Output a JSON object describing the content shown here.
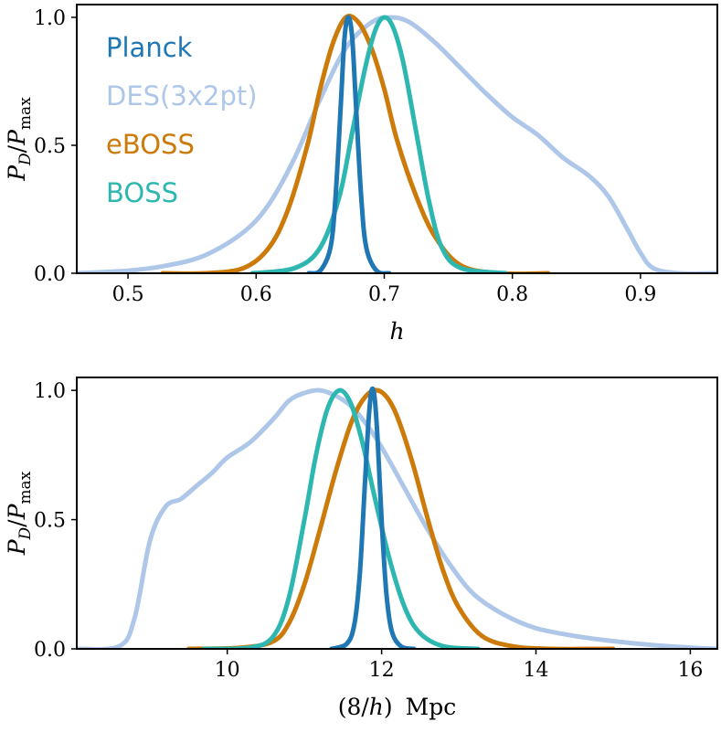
{
  "chart_data": [
    {
      "type": "line",
      "title": "",
      "xlabel": "h",
      "ylabel": "P_D/P_max",
      "xlim": [
        0.46,
        0.96
      ],
      "ylim": [
        0.0,
        1.05
      ],
      "xticks": [
        0.5,
        0.6,
        0.7,
        0.8,
        0.9
      ],
      "xtick_labels": [
        "0.5",
        "0.6",
        "0.7",
        "0.8",
        "0.9"
      ],
      "yticks": [
        0.0,
        0.5,
        1.0
      ],
      "ytick_labels": [
        "0.0",
        "0.5",
        "1.0"
      ],
      "grid": false,
      "legend": "top-left",
      "series": [
        {
          "name": "DES(3x2pt)",
          "color": "#aec7e8",
          "x": [
            0.46,
            0.5,
            0.53,
            0.56,
            0.59,
            0.61,
            0.63,
            0.65,
            0.67,
            0.69,
            0.705,
            0.72,
            0.74,
            0.76,
            0.78,
            0.8,
            0.82,
            0.84,
            0.86,
            0.875,
            0.89,
            0.9,
            0.91,
            0.93,
            0.96
          ],
          "y": [
            0.0,
            0.01,
            0.03,
            0.07,
            0.16,
            0.27,
            0.45,
            0.68,
            0.88,
            0.98,
            1.0,
            0.98,
            0.9,
            0.8,
            0.7,
            0.61,
            0.54,
            0.45,
            0.38,
            0.3,
            0.17,
            0.08,
            0.02,
            0.0,
            0.0
          ]
        },
        {
          "name": "Planck",
          "color": "#1f77b4",
          "x": [
            0.641,
            0.65,
            0.658,
            0.662,
            0.666,
            0.669,
            0.672,
            0.675,
            0.678,
            0.682,
            0.686,
            0.694,
            0.704
          ],
          "y": [
            0.0,
            0.01,
            0.1,
            0.3,
            0.65,
            0.92,
            1.0,
            0.92,
            0.65,
            0.3,
            0.1,
            0.01,
            0.0
          ]
        },
        {
          "name": "eBOSS",
          "color": "#cc7a0a",
          "x": [
            0.527,
            0.56,
            0.59,
            0.61,
            0.625,
            0.64,
            0.65,
            0.66,
            0.67,
            0.68,
            0.69,
            0.7,
            0.71,
            0.725,
            0.74,
            0.76,
            0.79,
            0.828
          ],
          "y": [
            0.0,
            0.0,
            0.02,
            0.1,
            0.25,
            0.5,
            0.72,
            0.9,
            1.0,
            0.98,
            0.88,
            0.72,
            0.52,
            0.3,
            0.14,
            0.03,
            0.0,
            0.0
          ]
        },
        {
          "name": "BOSS",
          "color": "#2eb7b0",
          "x": [
            0.597,
            0.63,
            0.65,
            0.665,
            0.675,
            0.685,
            0.693,
            0.7,
            0.707,
            0.715,
            0.725,
            0.735,
            0.745,
            0.76,
            0.795
          ],
          "y": [
            0.0,
            0.02,
            0.1,
            0.3,
            0.55,
            0.8,
            0.95,
            1.0,
            0.96,
            0.82,
            0.55,
            0.28,
            0.1,
            0.02,
            0.0
          ]
        }
      ]
    },
    {
      "type": "line",
      "title": "",
      "xlabel": "(8/h)  Mpc",
      "ylabel": "P_D/P_max",
      "xlim": [
        8.05,
        16.35
      ],
      "ylim": [
        0.0,
        1.05
      ],
      "xticks": [
        10,
        12,
        14,
        16
      ],
      "xtick_labels": [
        "10",
        "12",
        "14",
        "16"
      ],
      "yticks": [
        0.0,
        0.5,
        1.0
      ],
      "ytick_labels": [
        "0.0",
        "0.5",
        "1.0"
      ],
      "grid": false,
      "legend": "none",
      "series": [
        {
          "name": "DES(3x2pt)",
          "color": "#aec7e8",
          "x": [
            8.05,
            8.6,
            8.8,
            9.0,
            9.2,
            9.4,
            9.6,
            9.8,
            10.0,
            10.3,
            10.6,
            10.8,
            11.0,
            11.2,
            11.4,
            11.6,
            11.8,
            12.0,
            12.3,
            12.6,
            12.9,
            13.2,
            13.6,
            14.0,
            14.5,
            15.0,
            15.5,
            16.0,
            16.35
          ],
          "y": [
            0.0,
            0.01,
            0.12,
            0.42,
            0.55,
            0.58,
            0.63,
            0.68,
            0.74,
            0.8,
            0.89,
            0.96,
            0.99,
            1.0,
            0.98,
            0.94,
            0.87,
            0.78,
            0.62,
            0.46,
            0.32,
            0.21,
            0.13,
            0.08,
            0.05,
            0.03,
            0.015,
            0.005,
            0.0
          ]
        },
        {
          "name": "Planck",
          "color": "#1f77b4",
          "x": [
            11.35,
            11.55,
            11.65,
            11.72,
            11.78,
            11.83,
            11.87,
            11.91,
            11.95,
            12.0,
            12.06,
            12.13,
            12.25,
            12.42
          ],
          "y": [
            0.0,
            0.02,
            0.1,
            0.3,
            0.62,
            0.88,
            1.0,
            0.97,
            0.8,
            0.5,
            0.22,
            0.07,
            0.01,
            0.0
          ]
        },
        {
          "name": "eBOSS",
          "color": "#cc7a0a",
          "x": [
            9.5,
            10.2,
            10.6,
            10.8,
            11.0,
            11.2,
            11.4,
            11.6,
            11.75,
            11.9,
            12.05,
            12.2,
            12.4,
            12.6,
            12.8,
            13.0,
            13.3,
            13.7,
            14.2,
            15.0
          ],
          "y": [
            0.0,
            0.005,
            0.03,
            0.1,
            0.25,
            0.46,
            0.68,
            0.87,
            0.96,
            1.0,
            0.98,
            0.9,
            0.72,
            0.5,
            0.3,
            0.16,
            0.05,
            0.01,
            0.0,
            0.0
          ]
        },
        {
          "name": "BOSS",
          "color": "#2eb7b0",
          "x": [
            9.7,
            10.3,
            10.6,
            10.8,
            11.0,
            11.15,
            11.3,
            11.45,
            11.6,
            11.75,
            11.9,
            12.1,
            12.3,
            12.5,
            12.8,
            13.25
          ],
          "y": [
            0.0,
            0.005,
            0.05,
            0.2,
            0.5,
            0.75,
            0.93,
            1.0,
            0.95,
            0.8,
            0.6,
            0.35,
            0.16,
            0.06,
            0.01,
            0.0
          ]
        }
      ]
    }
  ]
}
